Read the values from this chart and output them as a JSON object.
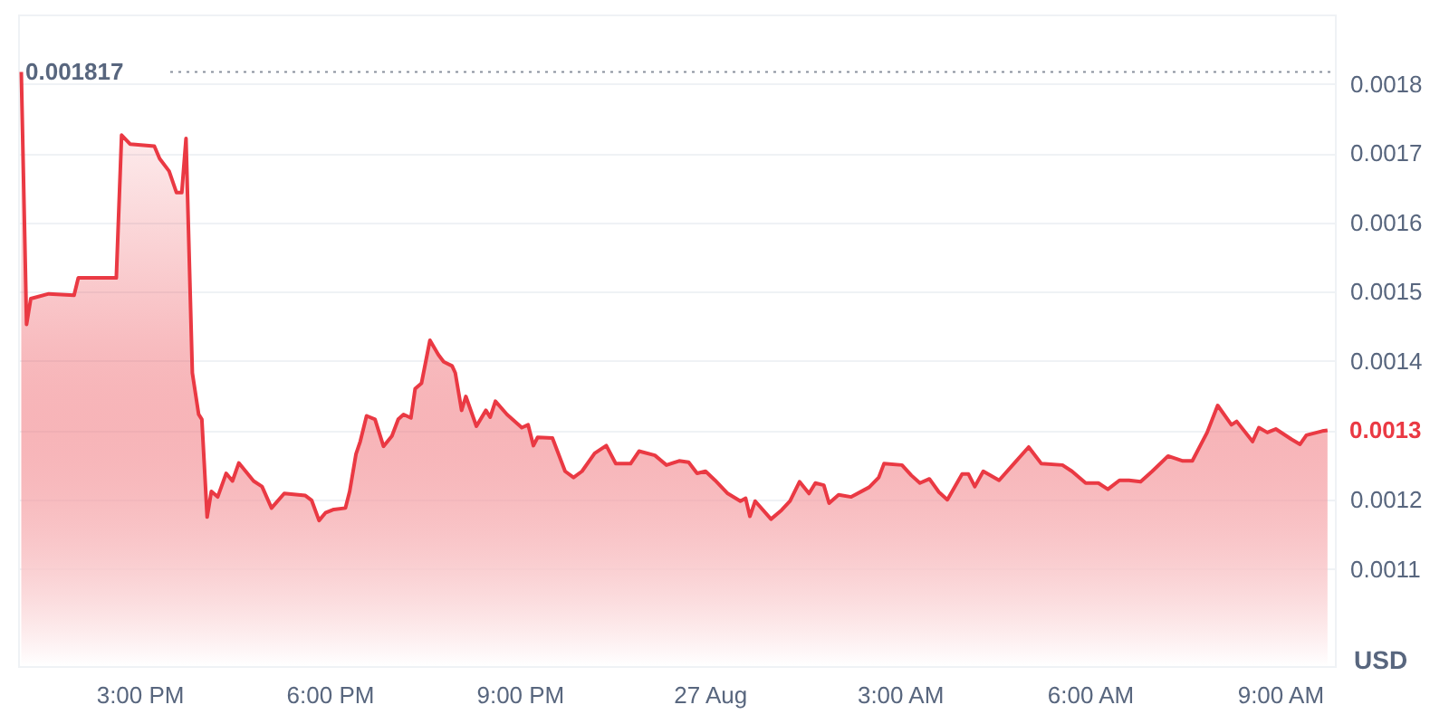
{
  "chart_data": {
    "type": "area",
    "ylabel": "USD",
    "x": [
      "--08-26T13:08",
      "--08-26T13:13",
      "--08-26T13:17",
      "--08-26T13:34",
      "--08-26T13:58",
      "--08-26T14:02",
      "--08-26T14:38",
      "--08-26T14:43",
      "--08-26T14:51",
      "--08-26T15:14",
      "--08-26T15:19",
      "--08-26T15:28",
      "--08-26T15:35",
      "--08-26T15:40",
      "--08-26T15:44",
      "--08-26T15:50",
      "--08-26T15:56",
      "--08-26T15:59",
      "--08-26T16:04",
      "--08-26T16:08",
      "--08-26T16:14",
      "--08-26T16:22",
      "--08-26T16:28",
      "--08-26T16:34",
      "--08-26T16:48",
      "--08-26T16:56",
      "--08-26T17:05",
      "--08-26T17:17",
      "--08-26T17:37",
      "--08-26T17:43",
      "--08-26T17:50",
      "--08-26T17:56",
      "--08-26T18:04",
      "--08-26T18:15",
      "--08-26T18:19",
      "--08-26T18:25",
      "--08-26T18:29",
      "--08-26T18:35",
      "--08-26T18:43",
      "--08-26T18:51",
      "--08-26T18:59",
      "--08-26T19:05",
      "--08-26T19:10",
      "--08-26T19:17",
      "--08-26T19:21",
      "--08-26T19:27",
      "--08-26T19:35",
      "--08-26T19:43",
      "--08-26T19:48",
      "--08-26T19:56",
      "--08-26T19:59",
      "--08-26T20:05",
      "--08-26T20:09",
      "--08-26T20:19",
      "--08-26T20:28",
      "--08-26T20:32",
      "--08-26T20:37",
      "--08-26T20:48",
      "--08-26T21:02",
      "--08-26T21:08",
      "--08-26T21:13",
      "--08-26T21:17",
      "--08-26T21:31",
      "--08-26T21:43",
      "--08-26T21:51",
      "--08-26T21:59",
      "--08-26T22:11",
      "--08-26T22:22",
      "--08-26T22:31",
      "--08-26T22:45",
      "--08-26T22:53",
      "--08-26T23:08",
      "--08-26T23:19",
      "--08-26T23:31",
      "--08-26T23:40",
      "--08-26T23:48",
      "--08-26T23:56",
      "--08-27T00:05",
      "--08-27T00:17",
      "--08-27T00:29",
      "--08-27T00:34",
      "--08-27T00:38",
      "--08-27T00:43",
      "--08-27T00:58",
      "--08-27T01:08",
      "--08-27T01:16",
      "--08-27T01:25",
      "--08-27T01:34",
      "--08-27T01:40",
      "--08-27T01:48",
      "--08-27T01:53",
      "--08-27T02:02",
      "--08-27T02:14",
      "--08-27T02:31",
      "--08-27T02:40",
      "--08-27T02:45",
      "--08-27T03:02",
      "--08-27T03:11",
      "--08-27T03:19",
      "--08-27T03:28",
      "--08-27T03:37",
      "--08-27T03:45",
      "--08-27T03:59",
      "--08-27T04:05",
      "--08-27T04:11",
      "--08-27T04:19",
      "--08-27T04:34",
      "--08-27T04:48",
      "--08-27T05:02",
      "--08-27T05:14",
      "--08-27T05:34",
      "--08-27T05:43",
      "--08-27T05:56",
      "--08-27T06:08",
      "--08-27T06:17",
      "--08-27T06:28",
      "--08-27T06:37",
      "--08-27T06:48",
      "--08-27T06:59",
      "--08-27T07:14",
      "--08-27T07:28",
      "--08-27T07:37",
      "--08-27T07:51",
      "--08-27T08:01",
      "--08-27T08:14",
      "--08-27T08:19",
      "--08-27T08:34",
      "--08-27T08:40",
      "--08-27T08:48",
      "--08-27T08:56",
      "--08-27T09:11",
      "--08-27T09:19",
      "--08-27T09:25",
      "--08-27T09:40",
      "--08-27T09:45"
    ],
    "series": [
      {
        "color": "#ea3943",
        "values": [
          0.001817,
          0.001453,
          0.00149,
          0.001497,
          0.001495,
          0.00152,
          0.00152,
          0.001726,
          0.001713,
          0.00171,
          0.001692,
          0.001674,
          0.001643,
          0.001643,
          0.001721,
          0.001383,
          0.001323,
          0.001316,
          0.001175,
          0.001212,
          0.001204,
          0.001238,
          0.001227,
          0.001253,
          0.001227,
          0.001219,
          0.001188,
          0.001209,
          0.001206,
          0.001199,
          0.00117,
          0.001181,
          0.001186,
          0.001188,
          0.001212,
          0.001266,
          0.001284,
          0.001321,
          0.001316,
          0.001277,
          0.001292,
          0.001316,
          0.001323,
          0.001318,
          0.00136,
          0.001368,
          0.00143,
          0.001409,
          0.001399,
          0.001393,
          0.001383,
          0.001329,
          0.001349,
          0.001306,
          0.001329,
          0.001319,
          0.001342,
          0.001323,
          0.001304,
          0.001308,
          0.001278,
          0.00129,
          0.001289,
          0.001241,
          0.001232,
          0.001241,
          0.001267,
          0.001278,
          0.001252,
          0.001252,
          0.00127,
          0.001264,
          0.00125,
          0.001256,
          0.001254,
          0.001238,
          0.001241,
          0.001228,
          0.001209,
          0.001198,
          0.001202,
          0.001176,
          0.001198,
          0.001172,
          0.001185,
          0.001198,
          0.001226,
          0.001209,
          0.001224,
          0.001221,
          0.001195,
          0.001207,
          0.001204,
          0.001218,
          0.001232,
          0.001252,
          0.00125,
          0.001235,
          0.001224,
          0.00123,
          0.001211,
          0.0012,
          0.001237,
          0.001237,
          0.001219,
          0.001241,
          0.001228,
          0.001252,
          0.001276,
          0.001252,
          0.00125,
          0.001241,
          0.001224,
          0.001224,
          0.001215,
          0.001228,
          0.001228,
          0.001226,
          0.001241,
          0.001263,
          0.001256,
          0.001256,
          0.001297,
          0.001336,
          0.001308,
          0.001313,
          0.001284,
          0.001304,
          0.001297,
          0.001302,
          0.001287,
          0.00128,
          0.001293,
          0.001299,
          0.0013
        ]
      }
    ],
    "xlim": [
      "--08-26T13:05",
      "--08-27T09:52"
    ],
    "xticks": [
      {
        "value": "--08-26T15:00",
        "label": "3:00 PM"
      },
      {
        "value": "--08-26T18:00",
        "label": "6:00 PM"
      },
      {
        "value": "--08-26T21:00",
        "label": "9:00 PM"
      },
      {
        "value": "--08-27T00:00",
        "label": "27 Aug"
      },
      {
        "value": "--08-27T03:00",
        "label": "3:00 AM"
      },
      {
        "value": "--08-27T06:00",
        "label": "6:00 AM"
      },
      {
        "value": "--08-27T09:00",
        "label": "9:00 AM"
      }
    ],
    "ylim": [
      0.00096,
      0.0019
    ],
    "yticks": [
      0.0011,
      0.0012,
      {
        "value": 0.0013,
        "label": null
      },
      0.0014,
      0.0015,
      0.0016,
      0.0017,
      0.0018
    ],
    "grid": "y",
    "ref_lines": [
      {
        "axis": "y",
        "value": 0.001817,
        "label": "0.001817",
        "line_style": "dotted",
        "color": "#8a919e"
      }
    ],
    "annotations": [
      "0.0013"
    ]
  }
}
